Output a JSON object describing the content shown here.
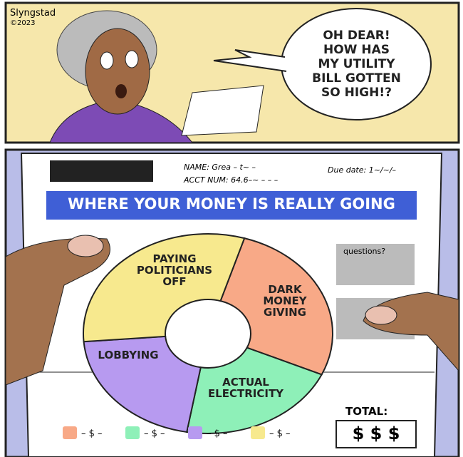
{
  "credit": {
    "artist": "Slyngstad",
    "year": "©2023"
  },
  "speech": "OH DEAR! HOW HAS MY UTILITY BILL GOTTEN SO HIGH!?",
  "bill": {
    "name": "NAME: Grea – t~ –",
    "account": "ACCT NUM: 64.6–~ – – –",
    "due": "Due date: 1~/~/–",
    "banner": "WHERE YOUR MONEY IS REALLY GOING",
    "questions": "questions?",
    "total_label": "TOTAL:",
    "total": "$ $ $"
  },
  "chart_data": {
    "type": "pie",
    "categories": [
      "DARK MONEY GIVING",
      "ACTUAL ELECTRICITY",
      "LOBBYING",
      "PAYING POLITICIANS OFF"
    ],
    "values": [
      27,
      21,
      21,
      31
    ],
    "colors": [
      "#f8a987",
      "#8ef0b8",
      "#b79af0",
      "#f7e98e"
    ],
    "legend": [
      "– $ –",
      "– $ –",
      "– $ –",
      "– $ –"
    ]
  }
}
